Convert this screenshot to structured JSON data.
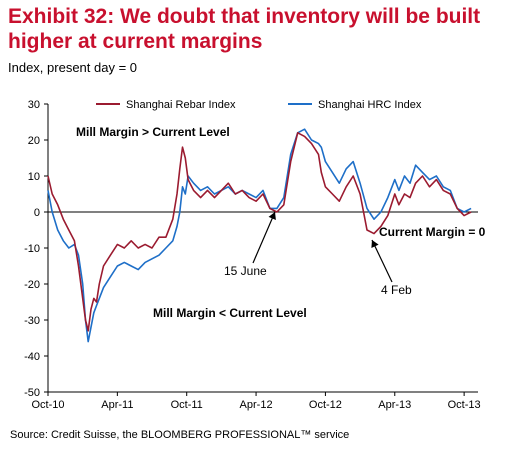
{
  "title": "Exhibit 32: We doubt that inventory will be built higher at current margins",
  "subtitle": "Index, present day = 0",
  "source": "Source: Credit Suisse, the BLOOMBERG PROFESSIONAL™ service",
  "chart_data": {
    "type": "line",
    "title": "Exhibit 32: We doubt that inventory will be built higher at current margins",
    "ylabel": "Index, present day = 0",
    "xlabel": "",
    "ylim": [
      -50,
      30
    ],
    "yticks": [
      30,
      20,
      10,
      0,
      -10,
      -20,
      -30,
      -40,
      -50
    ],
    "xticks": [
      "Oct-10",
      "Apr-11",
      "Oct-11",
      "Apr-12",
      "Oct-12",
      "Apr-13",
      "Oct-13"
    ],
    "xlim": [
      2010.75,
      2013.85
    ],
    "legend": "top",
    "grid": false,
    "series": [
      {
        "name": "Shanghai Rebar Index",
        "color": "#9b1b30",
        "x": [
          2010.75,
          2010.78,
          2010.82,
          2010.86,
          2010.9,
          2010.94,
          2010.97,
          2011.0,
          2011.02,
          2011.04,
          2011.06,
          2011.08,
          2011.1,
          2011.12,
          2011.15,
          2011.2,
          2011.25,
          2011.3,
          2011.35,
          2011.4,
          2011.45,
          2011.5,
          2011.55,
          2011.6,
          2011.65,
          2011.68,
          2011.7,
          2011.72,
          2011.74,
          2011.76,
          2011.8,
          2011.85,
          2011.9,
          2011.95,
          2012.0,
          2012.05,
          2012.1,
          2012.15,
          2012.2,
          2012.25,
          2012.3,
          2012.35,
          2012.4,
          2012.45,
          2012.5,
          2012.55,
          2012.6,
          2012.65,
          2012.7,
          2012.72,
          2012.75,
          2012.8,
          2012.85,
          2012.9,
          2012.95,
          2013.0,
          2013.05,
          2013.1,
          2013.15,
          2013.2,
          2013.25,
          2013.28,
          2013.32,
          2013.36,
          2013.4,
          2013.45,
          2013.5,
          2013.55,
          2013.6,
          2013.65,
          2013.7,
          2013.75,
          2013.8
        ],
        "y": [
          10,
          5,
          2,
          -2,
          -5,
          -8,
          -15,
          -24,
          -30,
          -33,
          -27,
          -24,
          -25,
          -20,
          -15,
          -12,
          -9,
          -10,
          -8,
          -10,
          -9,
          -10,
          -7,
          -7,
          -2,
          5,
          12,
          18,
          15,
          9,
          6,
          4,
          6,
          4,
          6,
          8,
          5,
          6,
          4,
          3,
          5,
          1,
          0,
          2,
          14,
          22,
          21,
          19,
          16,
          11,
          7,
          5,
          3,
          7,
          10,
          5,
          -5,
          -6,
          -4,
          -1,
          5,
          2,
          5,
          4,
          8,
          10,
          7,
          9,
          6,
          5,
          1,
          -1,
          0
        ]
      },
      {
        "name": "Shanghai HRC Index",
        "color": "#1e6fc8",
        "x": [
          2010.75,
          2010.78,
          2010.82,
          2010.86,
          2010.9,
          2010.94,
          2010.97,
          2011.0,
          2011.02,
          2011.04,
          2011.06,
          2011.08,
          2011.1,
          2011.12,
          2011.15,
          2011.2,
          2011.25,
          2011.3,
          2011.35,
          2011.4,
          2011.45,
          2011.5,
          2011.55,
          2011.6,
          2011.65,
          2011.68,
          2011.7,
          2011.72,
          2011.74,
          2011.76,
          2011.8,
          2011.85,
          2011.9,
          2011.95,
          2012.0,
          2012.05,
          2012.1,
          2012.15,
          2012.2,
          2012.25,
          2012.3,
          2012.35,
          2012.4,
          2012.45,
          2012.5,
          2012.55,
          2012.6,
          2012.65,
          2012.7,
          2012.72,
          2012.75,
          2012.8,
          2012.85,
          2012.9,
          2012.95,
          2013.0,
          2013.05,
          2013.1,
          2013.15,
          2013.2,
          2013.25,
          2013.28,
          2013.32,
          2013.36,
          2013.4,
          2013.45,
          2013.5,
          2013.55,
          2013.6,
          2013.65,
          2013.7,
          2013.75,
          2013.8
        ],
        "y": [
          6,
          0,
          -5,
          -8,
          -10,
          -9,
          -12,
          -20,
          -30,
          -36,
          -32,
          -28,
          -26,
          -24,
          -21,
          -18,
          -15,
          -14,
          -15,
          -16,
          -14,
          -13,
          -12,
          -10,
          -8,
          -4,
          0,
          7,
          5,
          10,
          8,
          6,
          7,
          5,
          6,
          7,
          5,
          6,
          5,
          4,
          6,
          1,
          1,
          4,
          16,
          22,
          23,
          20,
          19,
          18,
          14,
          11,
          8,
          12,
          14,
          8,
          1,
          -2,
          0,
          4,
          9,
          6,
          10,
          8,
          13,
          11,
          9,
          10,
          7,
          6,
          1,
          0,
          1
        ]
      }
    ],
    "annotations": [
      {
        "text": "Mill Margin > Current Level",
        "bold": true
      },
      {
        "text": "Mill Margin < Current Level",
        "bold": true
      },
      {
        "text": "Current Margin = 0",
        "bold": true
      },
      {
        "text": "15 June",
        "bold": false,
        "x": 2012.45,
        "y": 0
      },
      {
        "text": "4 Feb",
        "bold": false,
        "x": 2013.1,
        "y": -5
      }
    ]
  }
}
